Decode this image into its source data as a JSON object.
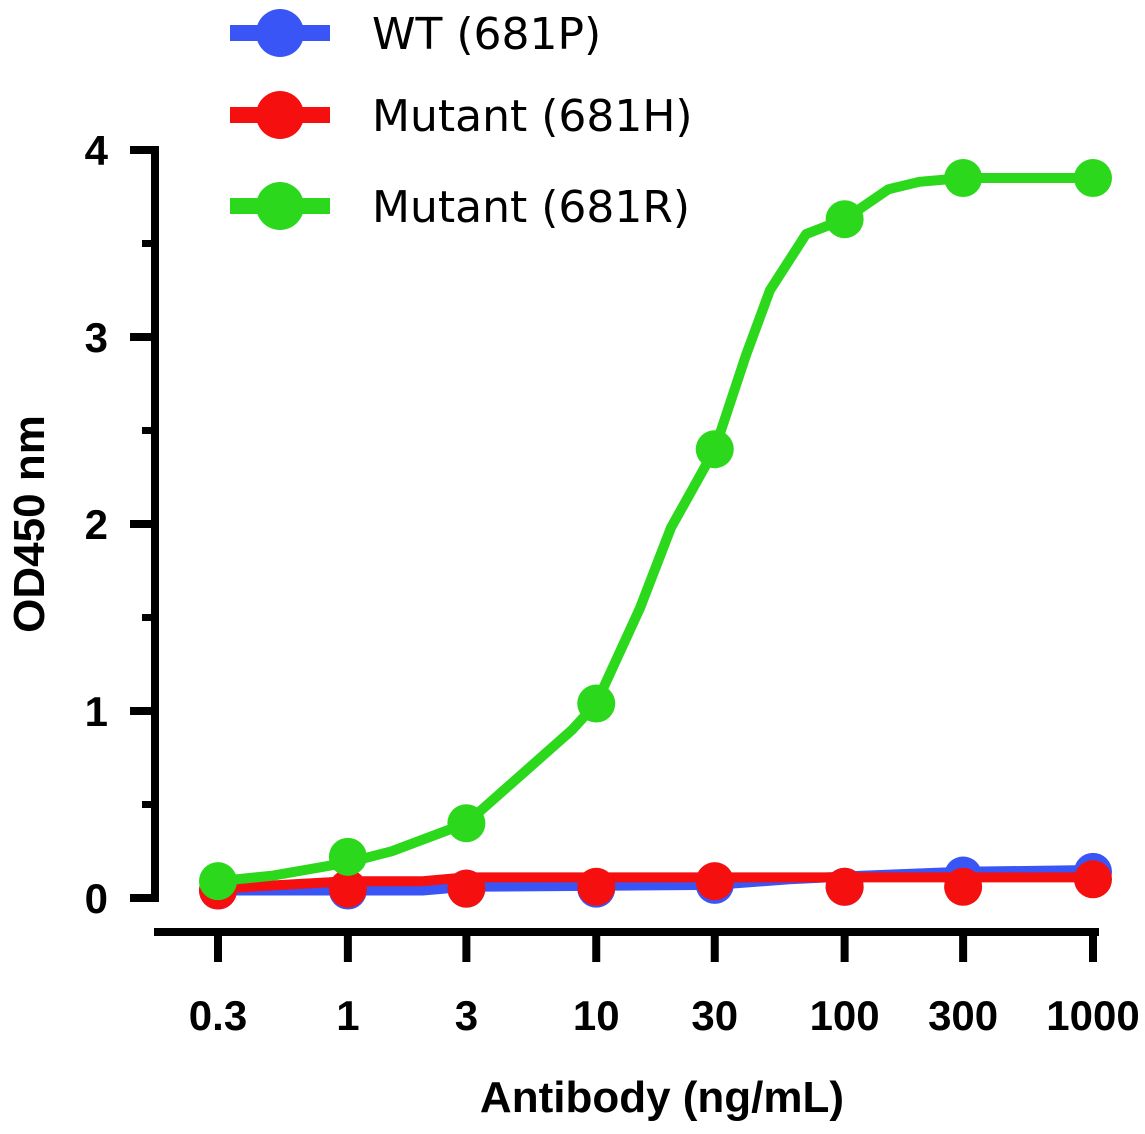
{
  "chart_data": {
    "type": "line",
    "xlabel": "Antibody (ng/mL)",
    "ylabel": "OD450 nm",
    "x_scale": "log",
    "x": [
      0.3,
      1,
      3,
      10,
      30,
      100,
      300,
      1000
    ],
    "x_tick_labels": [
      "0.3",
      "1",
      "3",
      "10",
      "30",
      "100",
      "300",
      "1000"
    ],
    "y_ticks": [
      0,
      1,
      2,
      3,
      4
    ],
    "y_tick_labels": [
      "0",
      "1",
      "2",
      "3",
      "4"
    ],
    "ylim": [
      0,
      4
    ],
    "legend_position": "top-left",
    "grid": false,
    "series": [
      {
        "name": "WT (681P)",
        "color": "#3a55f5",
        "values": [
          0.04,
          0.04,
          0.05,
          0.05,
          0.07,
          0.06,
          0.12,
          0.14
        ],
        "curve": [
          [
            0.3,
            0.04
          ],
          [
            2,
            0.04
          ],
          [
            3,
            0.06
          ],
          [
            30,
            0.07
          ],
          [
            60,
            0.1
          ],
          [
            120,
            0.12
          ],
          [
            300,
            0.14
          ],
          [
            1000,
            0.15
          ]
        ]
      },
      {
        "name": "Mutant (681H)",
        "color": "#f50f0f",
        "values": [
          0.04,
          0.05,
          0.05,
          0.06,
          0.09,
          0.06,
          0.06,
          0.1
        ],
        "curve": [
          [
            0.3,
            0.05
          ],
          [
            1,
            0.09
          ],
          [
            2,
            0.09
          ],
          [
            3,
            0.11
          ],
          [
            10,
            0.11
          ],
          [
            100,
            0.11
          ],
          [
            1000,
            0.11
          ]
        ]
      },
      {
        "name": "Mutant (681R)",
        "color": "#2bd81c",
        "values": [
          0.09,
          0.22,
          0.4,
          1.04,
          2.4,
          3.63,
          3.85,
          3.85
        ],
        "curve": [
          [
            0.3,
            0.09
          ],
          [
            0.5,
            0.12
          ],
          [
            1,
            0.19
          ],
          [
            1.5,
            0.25
          ],
          [
            3,
            0.4
          ],
          [
            5,
            0.66
          ],
          [
            8,
            0.9
          ],
          [
            10,
            1.04
          ],
          [
            15,
            1.55
          ],
          [
            20,
            1.98
          ],
          [
            30,
            2.4
          ],
          [
            40,
            2.9
          ],
          [
            50,
            3.25
          ],
          [
            70,
            3.55
          ],
          [
            100,
            3.63
          ],
          [
            150,
            3.79
          ],
          [
            200,
            3.83
          ],
          [
            300,
            3.85
          ],
          [
            1000,
            3.85
          ]
        ]
      }
    ]
  }
}
